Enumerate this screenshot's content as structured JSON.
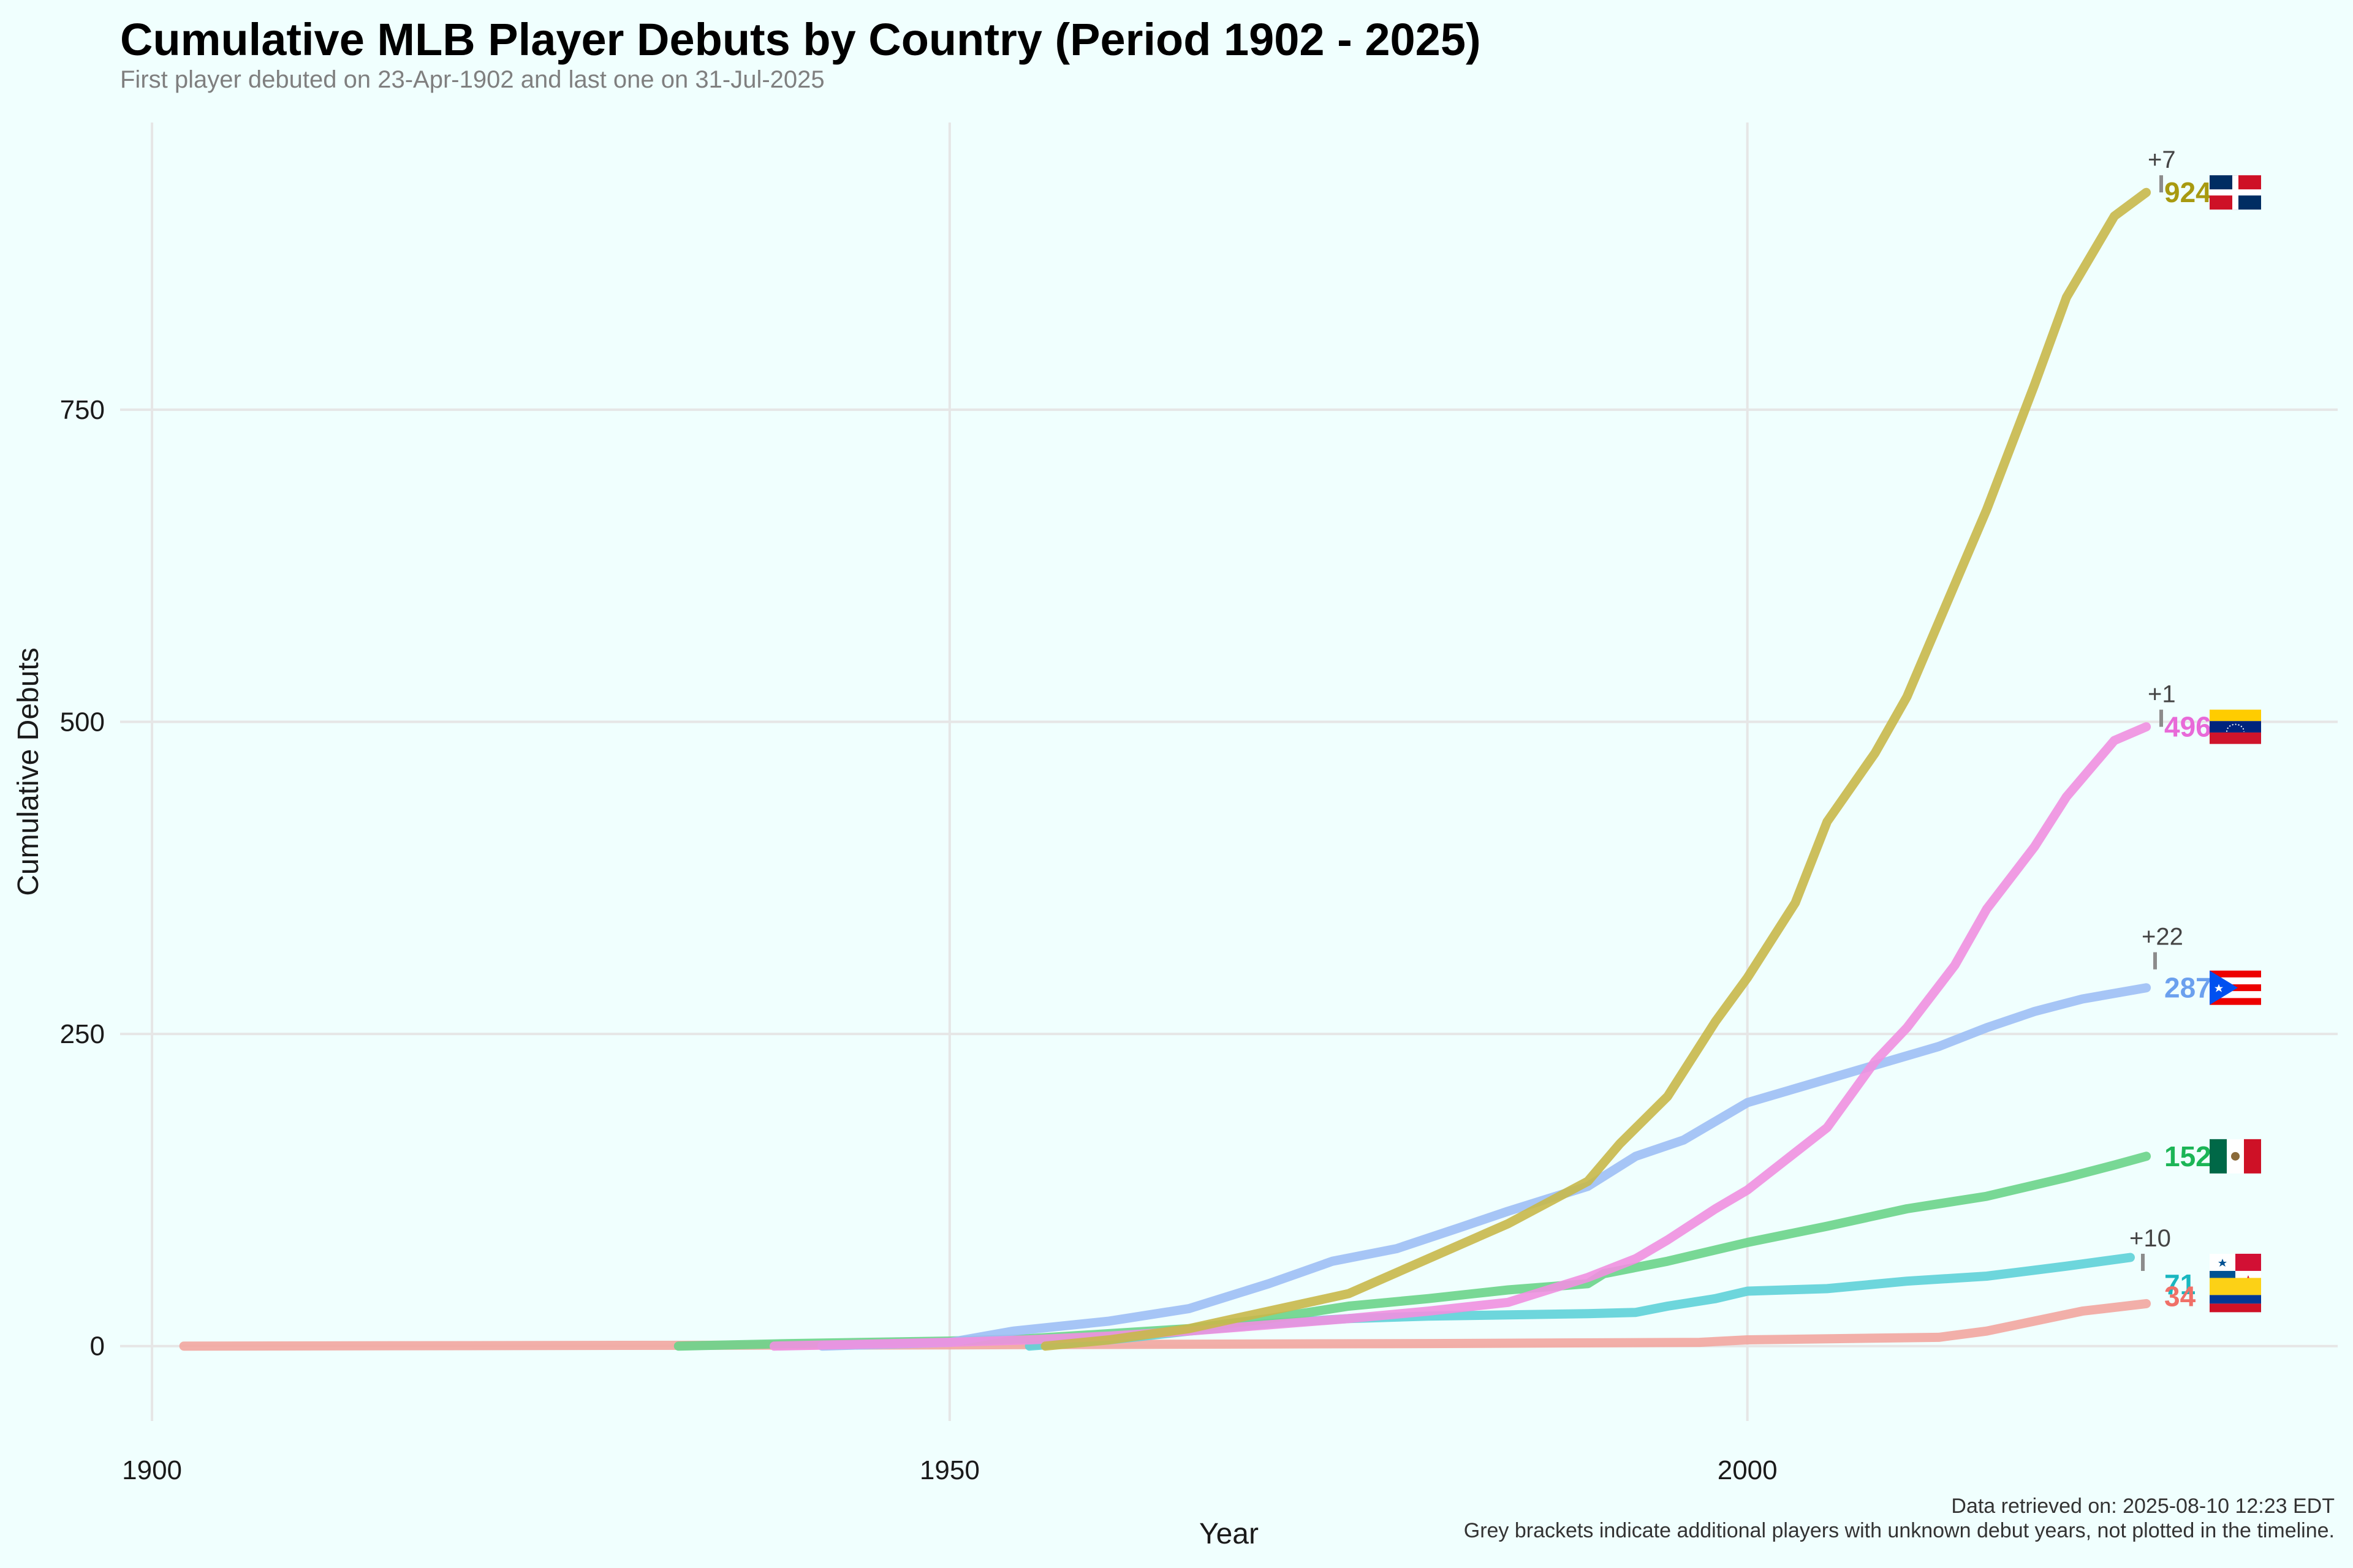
{
  "chart_data": {
    "type": "line",
    "title": "Cumulative MLB Player Debuts by Country (Period 1902 - 2025)",
    "subtitle": "First player debuted on 23-Apr-1902 and last one on 31-Jul-2025",
    "xlabel": "Year",
    "ylabel": "Cumulative Debuts",
    "xlim": [
      1898,
      2037
    ],
    "ylim": [
      -60,
      980
    ],
    "x_ticks": [
      1900,
      1950,
      2000
    ],
    "y_ticks": [
      0,
      250,
      500,
      750
    ],
    "grid": true,
    "legend": "none (end-of-line labels with flags)",
    "captions": [
      "Data retrieved on: 2025-08-10 12:23 EDT",
      "Grey brackets indicate additional players with unknown debut years, not plotted in the timeline."
    ],
    "series": [
      {
        "flag": "dominican-republic",
        "color": "#c8b84a",
        "label_color": "#a89a10",
        "end_label": "924",
        "bracket_label": "+7",
        "x": [
          1956,
          1960,
          1965,
          1970,
          1975,
          1980,
          1985,
          1990,
          1992,
          1995,
          1998,
          2000,
          2003,
          2005,
          2008,
          2010,
          2013,
          2015,
          2018,
          2020,
          2023,
          2025
        ],
        "y": [
          0,
          5,
          14,
          28,
          42,
          70,
          98,
          132,
          162,
          200,
          260,
          295,
          355,
          420,
          475,
          520,
          610,
          670,
          770,
          840,
          905,
          924
        ]
      },
      {
        "flag": "venezuela",
        "color": "#f090e0",
        "label_color": "#e86ad8",
        "end_label": "496",
        "bracket_label": "+1",
        "x": [
          1939,
          1950,
          1955,
          1960,
          1965,
          1970,
          1975,
          1980,
          1985,
          1990,
          1993,
          1995,
          1998,
          2000,
          2002,
          2005,
          2008,
          2010,
          2013,
          2015,
          2018,
          2020,
          2023,
          2025
        ],
        "y": [
          0,
          3,
          5,
          8,
          12,
          17,
          22,
          28,
          35,
          55,
          70,
          85,
          110,
          125,
          145,
          175,
          228,
          255,
          305,
          350,
          400,
          440,
          485,
          496
        ]
      },
      {
        "flag": "puerto-rico",
        "color": "#9dbff5",
        "label_color": "#6ba0ee",
        "end_label": "287",
        "bracket_label": "+22",
        "x": [
          1942,
          1950,
          1954,
          1960,
          1965,
          1970,
          1974,
          1978,
          1982,
          1985,
          1990,
          1993,
          1996,
          2000,
          2004,
          2008,
          2012,
          2015,
          2018,
          2021,
          2025
        ],
        "y": [
          0,
          3,
          12,
          20,
          30,
          50,
          68,
          78,
          95,
          108,
          128,
          152,
          165,
          195,
          210,
          225,
          240,
          255,
          268,
          278,
          287
        ]
      },
      {
        "flag": "mexico",
        "color": "#6ad48a",
        "label_color": "#1cb556",
        "end_label": "152",
        "bracket_label": "",
        "x": [
          1933,
          1940,
          1950,
          1955,
          1960,
          1965,
          1970,
          1975,
          1980,
          1985,
          1990,
          1991,
          1995,
          2000,
          2005,
          2010,
          2015,
          2020,
          2023,
          2025
        ],
        "y": [
          0,
          2,
          4,
          6,
          10,
          14,
          22,
          32,
          38,
          45,
          50,
          58,
          68,
          83,
          96,
          110,
          120,
          135,
          145,
          152
        ]
      },
      {
        "flag": "panama",
        "color": "#5ed2d8",
        "label_color": "#1ab7c0",
        "end_label": "71",
        "bracket_label": "+10",
        "x": [
          1955,
          1960,
          1965,
          1970,
          1975,
          1980,
          1985,
          1990,
          1993,
          1995,
          1998,
          2000,
          2005,
          2010,
          2015,
          2020,
          2024
        ],
        "y": [
          0,
          5,
          12,
          18,
          22,
          24,
          25,
          26,
          27,
          32,
          38,
          44,
          46,
          52,
          56,
          64,
          71
        ]
      },
      {
        "flag": "colombia",
        "color": "#f2a6a0",
        "label_color": "#f07068",
        "end_label": "34",
        "bracket_label": "",
        "x": [
          1902,
          1950,
          1980,
          1997,
          2000,
          2012,
          2015,
          2018,
          2021,
          2025
        ],
        "y": [
          0,
          1,
          2,
          3,
          5,
          7,
          12,
          20,
          28,
          34
        ]
      }
    ]
  }
}
